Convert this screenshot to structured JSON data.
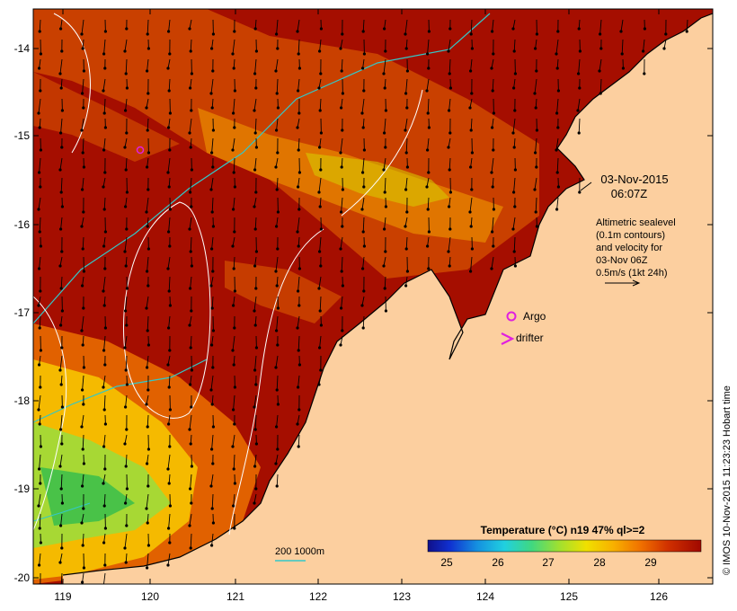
{
  "map": {
    "lon_ticks": [
      "119",
      "120",
      "121",
      "122",
      "123",
      "124",
      "125",
      "126"
    ],
    "lat_ticks": [
      "-14",
      "-15",
      "-16",
      "-17",
      "-18",
      "-19",
      "-20"
    ],
    "date_line1": "03-Nov-2015",
    "date_line2": "06:07Z",
    "legend_lines": [
      "Altimetric sealevel",
      "(0.1m contours)",
      "and velocity for",
      "03-Nov 06Z",
      "0.5m/s (1kt 24h)"
    ],
    "argo_label": "Argo",
    "drifter_label": "drifter",
    "isobath_label": "200  1000m",
    "colorbar_title": "Temperature (°C) n19 47% ql>=2",
    "colorbar_ticks": [
      "25",
      "26",
      "27",
      "28",
      "29"
    ],
    "credit": "© IMOS 10-Nov-2015 11:23:23 Hobart time"
  },
  "colors": {
    "land": "#fccf9f",
    "warm": "#a50e00",
    "orange": "#e86a00",
    "yellow": "#f7c400",
    "green": "#7ad23a",
    "isobath": "#33c8c8",
    "argo": "#e020e0",
    "contour": "#ffffff"
  }
}
